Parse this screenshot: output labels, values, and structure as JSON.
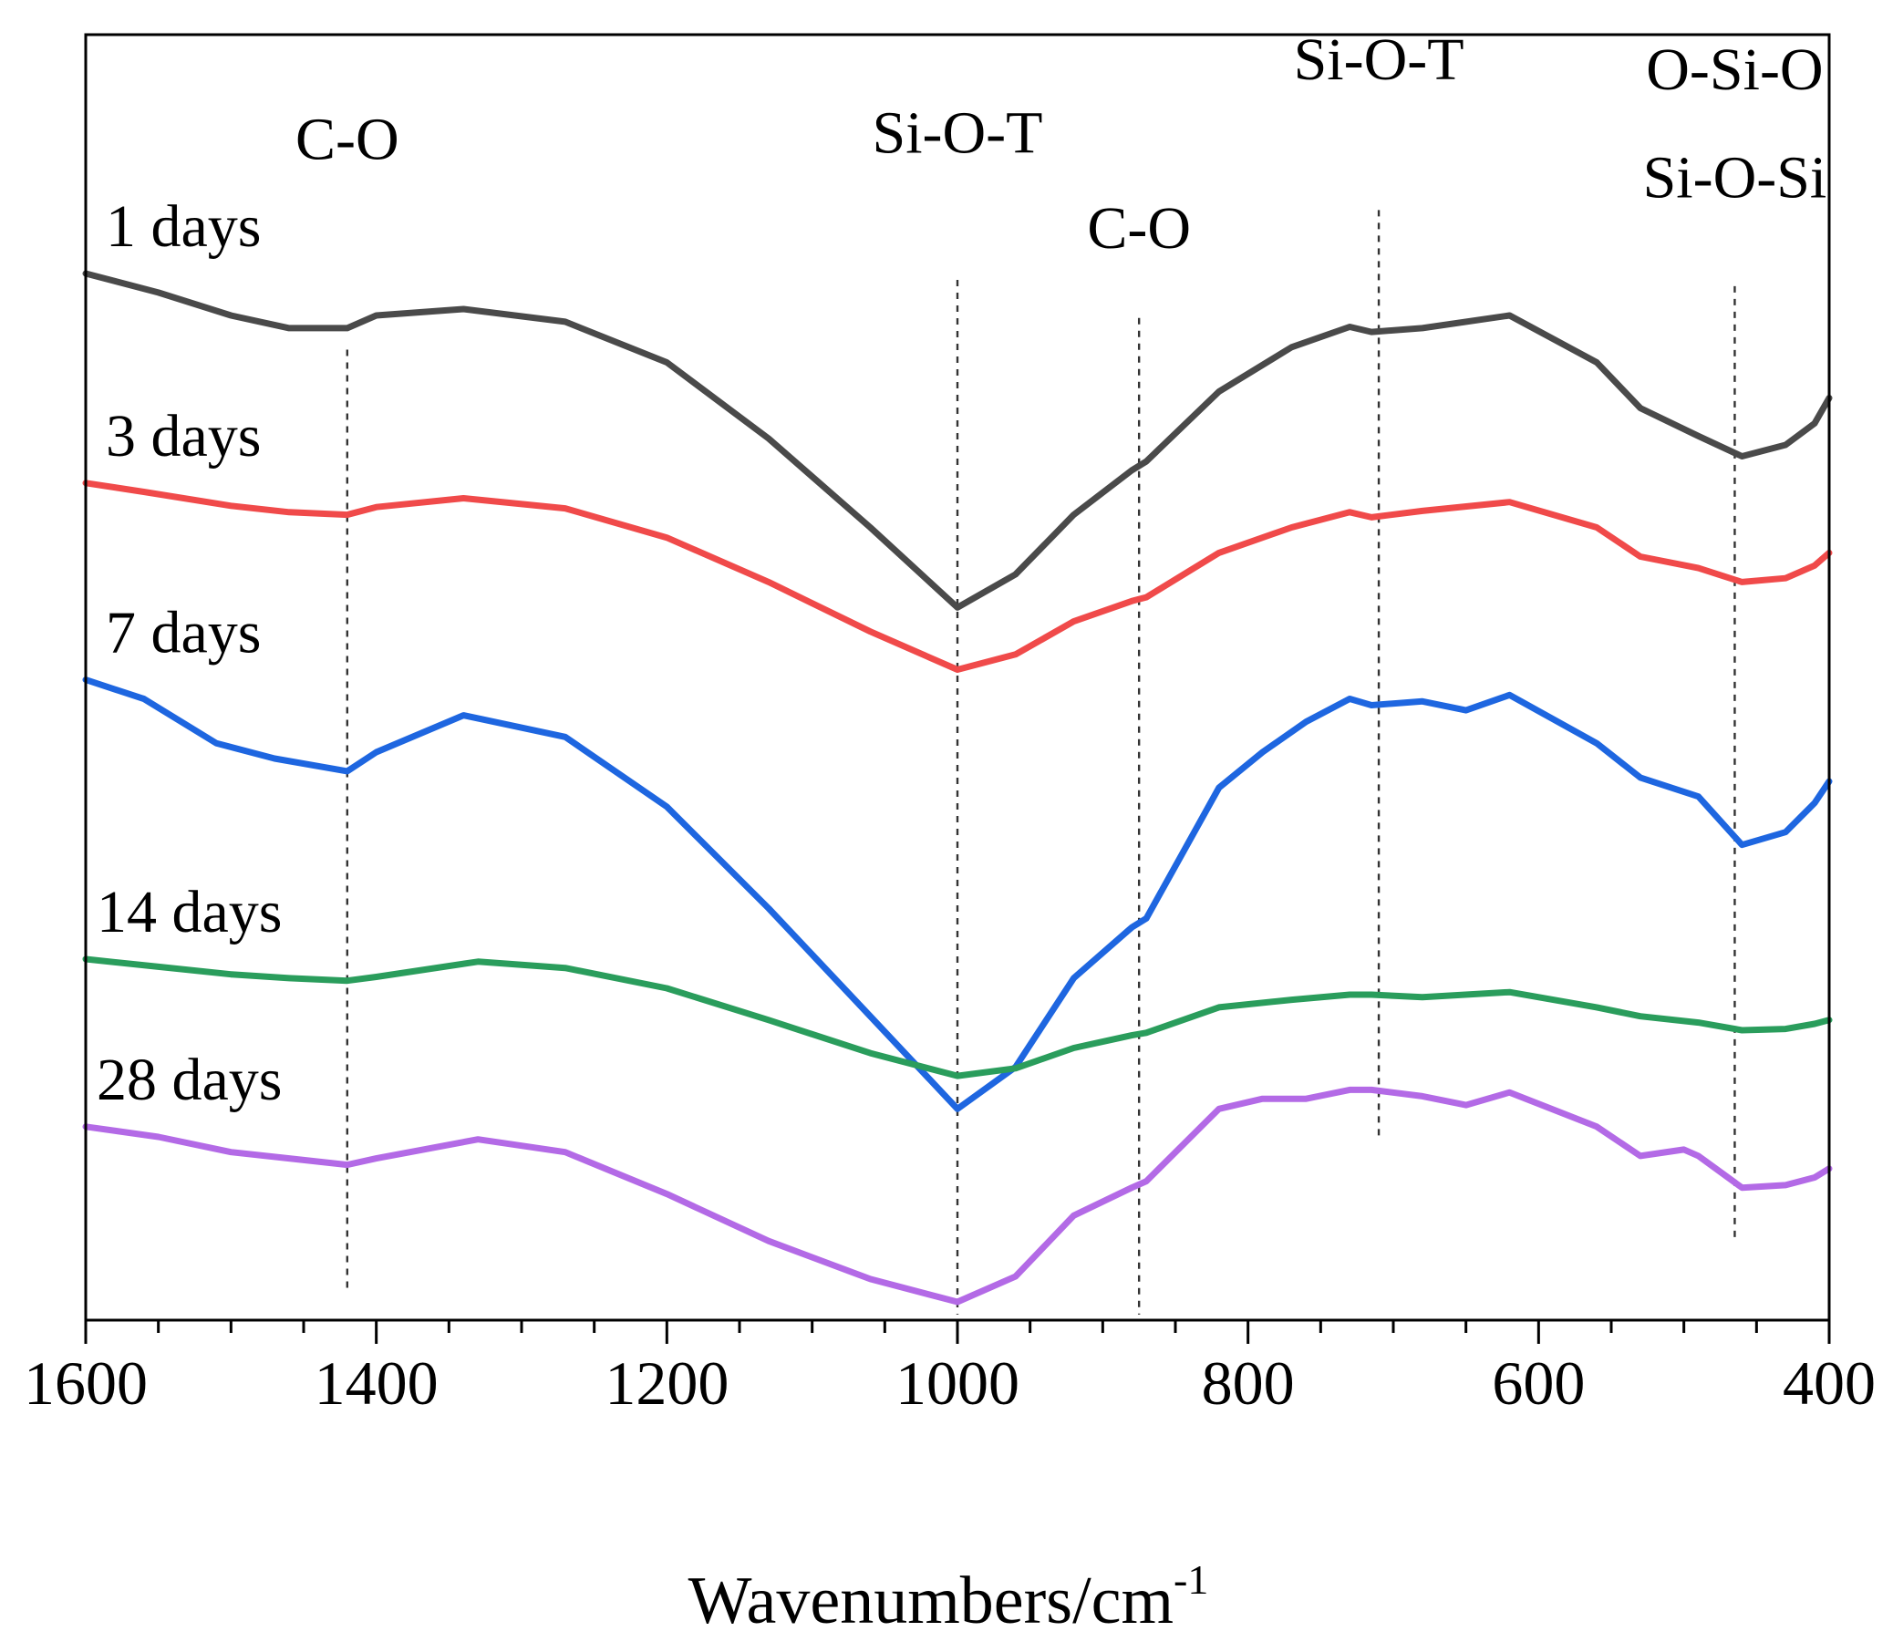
{
  "chart_data": {
    "type": "line",
    "title": "",
    "xlabel": "Wavenumbers/cm",
    "xlabel_superscript": "-1",
    "ylabel": "",
    "xlim": [
      1600,
      400
    ],
    "x_reversed": true,
    "grid": false,
    "xticks": [
      1600,
      1400,
      1200,
      1000,
      800,
      600,
      400
    ],
    "y_offset_units": "arbitrary (stacked, offset traces)",
    "series": [
      {
        "name": "1 days",
        "color": "#4a4a4a",
        "x": [
          1600,
          1550,
          1500,
          1460,
          1420,
          1400,
          1340,
          1270,
          1200,
          1130,
          1060,
          1000,
          960,
          920,
          880,
          870,
          820,
          770,
          730,
          715,
          680,
          620,
          560,
          530,
          490,
          460,
          430,
          410,
          400
        ],
        "y": [
          0.81,
          0.795,
          0.777,
          0.767,
          0.767,
          0.777,
          0.782,
          0.772,
          0.74,
          0.68,
          0.61,
          0.547,
          0.573,
          0.62,
          0.655,
          0.662,
          0.717,
          0.752,
          0.768,
          0.764,
          0.767,
          0.777,
          0.74,
          0.704,
          0.682,
          0.666,
          0.675,
          0.692,
          0.712
        ]
      },
      {
        "name": "3 days",
        "color": "#f04a4a",
        "x": [
          1600,
          1560,
          1500,
          1460,
          1420,
          1400,
          1340,
          1270,
          1200,
          1130,
          1060,
          1000,
          960,
          920,
          880,
          870,
          820,
          770,
          730,
          715,
          680,
          620,
          560,
          530,
          490,
          460,
          430,
          410,
          400
        ],
        "y": [
          0.645,
          0.638,
          0.627,
          0.622,
          0.62,
          0.626,
          0.633,
          0.625,
          0.602,
          0.567,
          0.528,
          0.498,
          0.51,
          0.536,
          0.552,
          0.555,
          0.59,
          0.61,
          0.622,
          0.618,
          0.623,
          0.63,
          0.61,
          0.587,
          0.578,
          0.567,
          0.57,
          0.58,
          0.59
        ]
      },
      {
        "name": "7 days",
        "color": "#1e66e0",
        "x": [
          1600,
          1560,
          1510,
          1470,
          1420,
          1400,
          1340,
          1270,
          1200,
          1130,
          1060,
          1000,
          960,
          920,
          880,
          870,
          820,
          790,
          760,
          730,
          715,
          680,
          650,
          620,
          560,
          530,
          490,
          460,
          430,
          410,
          400
        ],
        "y": [
          0.49,
          0.475,
          0.44,
          0.428,
          0.418,
          0.433,
          0.462,
          0.445,
          0.39,
          0.31,
          0.225,
          0.152,
          0.185,
          0.255,
          0.295,
          0.302,
          0.405,
          0.433,
          0.457,
          0.475,
          0.47,
          0.473,
          0.466,
          0.478,
          0.44,
          0.413,
          0.398,
          0.36,
          0.37,
          0.393,
          0.41
        ]
      },
      {
        "name": "14 days",
        "color": "#2a9d5c",
        "x": [
          1600,
          1550,
          1500,
          1460,
          1420,
          1400,
          1330,
          1270,
          1200,
          1130,
          1060,
          1000,
          960,
          920,
          880,
          870,
          820,
          770,
          730,
          715,
          680,
          620,
          560,
          530,
          490,
          460,
          430,
          410,
          400
        ],
        "y": [
          0.27,
          0.264,
          0.258,
          0.255,
          0.253,
          0.256,
          0.268,
          0.263,
          0.247,
          0.222,
          0.196,
          0.178,
          0.184,
          0.2,
          0.21,
          0.212,
          0.232,
          0.238,
          0.242,
          0.242,
          0.24,
          0.244,
          0.232,
          0.225,
          0.22,
          0.214,
          0.215,
          0.219,
          0.222
        ]
      },
      {
        "name": "28 days",
        "color": "#b36ae6",
        "x": [
          1600,
          1550,
          1500,
          1460,
          1420,
          1400,
          1330,
          1270,
          1200,
          1130,
          1060,
          1000,
          960,
          920,
          880,
          870,
          820,
          790,
          760,
          730,
          715,
          680,
          650,
          620,
          560,
          530,
          500,
          490,
          460,
          430,
          410,
          400
        ],
        "y": [
          0.138,
          0.13,
          0.118,
          0.113,
          0.108,
          0.113,
          0.128,
          0.118,
          0.085,
          0.048,
          0.018,
          0.0,
          0.02,
          0.068,
          0.09,
          0.095,
          0.152,
          0.16,
          0.16,
          0.167,
          0.167,
          0.162,
          0.155,
          0.165,
          0.138,
          0.115,
          0.12,
          0.115,
          0.09,
          0.092,
          0.098,
          0.105
        ]
      }
    ],
    "annotations": [
      {
        "label": "C-O",
        "x": 1420,
        "line_top": 0.75,
        "line_bottom": 0.01,
        "label_level": 0.9
      },
      {
        "label": "Si-O-T",
        "x": 1000,
        "line_top": 0.805,
        "line_bottom": -0.01,
        "label_level": 0.905
      },
      {
        "label": "C-O",
        "x": 875,
        "line_top": 0.775,
        "line_bottom": -0.01,
        "label_level": 0.83
      },
      {
        "label": "Si-O-T",
        "x": 710,
        "line_top": 0.86,
        "line_bottom": 0.13,
        "label_level": 0.963
      },
      {
        "label": "O-Si-O",
        "x": 465,
        "line_top": 0.8,
        "line_bottom": 0.05,
        "label_level": 0.955
      },
      {
        "label": "Si-O-Si",
        "x": 465,
        "line_top": 0.8,
        "line_bottom": 0.05,
        "label_level": 0.87
      }
    ]
  }
}
